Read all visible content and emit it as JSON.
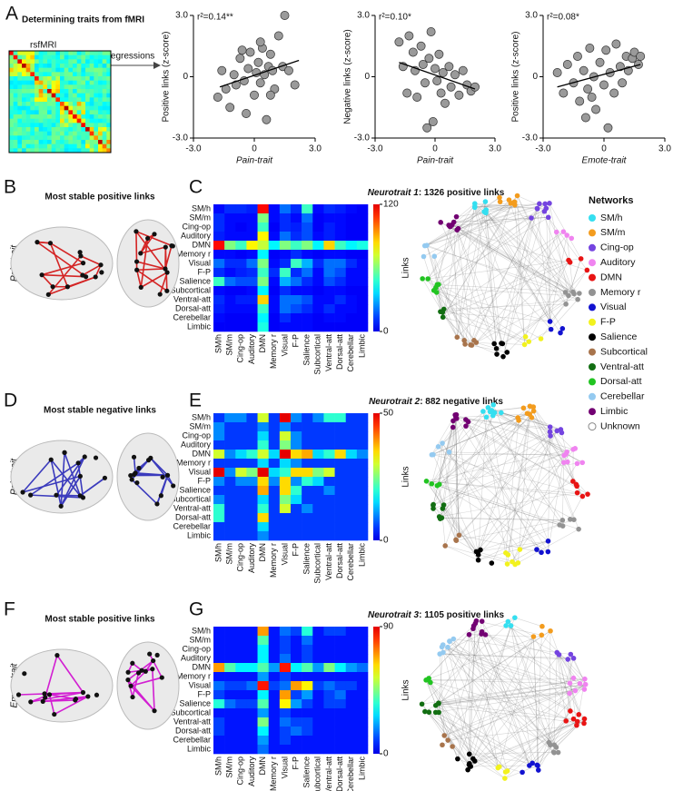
{
  "figure": {
    "letters": [
      "A",
      "B",
      "C",
      "D",
      "E",
      "F",
      "G"
    ],
    "panel_a": {
      "title": "Determining traits from fMRI",
      "matrix_label": "rsfMRI",
      "arrow_label": "robust regressions"
    },
    "brains": [
      {
        "title": "Most stable positive links",
        "trait": "Pain-trait",
        "link_color": "#d42424"
      },
      {
        "title": "Most stable negative links",
        "trait": "Pain-trait",
        "link_color": "#3b3bbd"
      },
      {
        "title": "Most stable positive links",
        "trait": "Emote-trait",
        "link_color": "#d21fd2"
      }
    ],
    "legend": {
      "title": "Networks",
      "entries": [
        {
          "name": "SM/h",
          "color": "#35dff0"
        },
        {
          "name": "SM/m",
          "color": "#f39c1e"
        },
        {
          "name": "Cing-op",
          "color": "#7444e0"
        },
        {
          "name": "Auditory",
          "color": "#f084f0"
        },
        {
          "name": "DMN",
          "color": "#e81414"
        },
        {
          "name": "Memory r",
          "color": "#939393"
        },
        {
          "name": "Visual",
          "color": "#1212d0"
        },
        {
          "name": "F-P",
          "color": "#f2f21e"
        },
        {
          "name": "Salience",
          "color": "#000000"
        },
        {
          "name": "Subcortical",
          "color": "#a8744c"
        },
        {
          "name": "Ventral-att",
          "color": "#126e12"
        },
        {
          "name": "Dorsal-att",
          "color": "#22c422"
        },
        {
          "name": "Cerebellar",
          "color": "#94caf0"
        },
        {
          "name": "Limbic",
          "color": "#720072"
        },
        {
          "name": "Unknown",
          "color": "#ffffff"
        }
      ]
    }
  },
  "chart_data": [
    {
      "type": "scatter",
      "color": "#9a9a9a",
      "annotation": "r²=0.14**",
      "xlabel": "Pain-trait",
      "ylabel": "Positive links (z-score)",
      "x": [
        -1.8,
        -1.6,
        -1.4,
        -1.2,
        -1.0,
        -0.9,
        -0.7,
        -0.5,
        -0.4,
        -0.3,
        -0.2,
        0,
        0.1,
        0.2,
        0.3,
        0.4,
        0.5,
        0.6,
        0.7,
        0.8,
        0.9,
        1.0,
        1.2,
        1.4,
        1.5,
        1.7,
        2.0,
        -0.6,
        0.3,
        0.8
      ],
      "values": [
        -1.0,
        0.3,
        -0.6,
        -1.5,
        0.1,
        -0.4,
        0.9,
        -0.2,
        -1.8,
        0.4,
        1.2,
        -0.9,
        0.2,
        0.7,
        -0.3,
        1.4,
        0.1,
        -2.1,
        0.5,
        1.1,
        0.3,
        -0.6,
        2.0,
        0.5,
        3.0,
        0.3,
        -0.4,
        1.3,
        1.7,
        -0.9
      ],
      "fit": {
        "x": [
          -1.7,
          2.2
        ],
        "values": [
          -0.5,
          0.8
        ]
      },
      "xlim": [
        -3,
        3
      ],
      "ylim": [
        -3,
        3
      ],
      "xticks": [
        {
          "value": -3,
          "label": "-3.0"
        },
        0,
        {
          "value": 3,
          "label": "3.0"
        }
      ],
      "yticks": [
        {
          "value": -3,
          "label": "-3.0"
        },
        0,
        {
          "value": 3,
          "label": "3.0"
        }
      ]
    },
    {
      "type": "scatter",
      "color": "#9a9a9a",
      "annotation": "r²=0.10*",
      "xlabel": "Pain-trait",
      "ylabel": "Negative links (z-score)",
      "x": [
        -1.8,
        -1.6,
        -1.4,
        -1.3,
        -1.1,
        -1.0,
        -0.9,
        -0.7,
        -0.6,
        -0.5,
        -0.3,
        -0.2,
        0,
        0.1,
        0.2,
        0.3,
        0.4,
        0.5,
        0.7,
        0.8,
        1.0,
        1.2,
        1.4,
        1.6,
        1.8,
        2.0,
        -0.1,
        -0.4
      ],
      "values": [
        1.7,
        0.5,
        -0.8,
        2.0,
        1.2,
        0.3,
        -1.0,
        1.5,
        0.6,
        -0.3,
        0.9,
        2.2,
        0.4,
        -0.2,
        1.1,
        -0.8,
        0.2,
        -1.3,
        0.5,
        -0.5,
        0.1,
        -0.9,
        0.3,
        -0.4,
        -0.7,
        -0.5,
        -2.2,
        -2.5
      ],
      "fit": {
        "x": [
          -1.8,
          2.0
        ],
        "values": [
          0.7,
          -0.6
        ]
      },
      "xlim": [
        -3,
        3
      ],
      "ylim": [
        -3,
        3
      ],
      "xticks": [
        {
          "value": -3,
          "label": "-3.0"
        },
        0,
        {
          "value": 3,
          "label": "3.0"
        }
      ],
      "yticks": [
        {
          "value": -3,
          "label": "-3.0"
        },
        0,
        {
          "value": 3,
          "label": "3.0"
        }
      ]
    },
    {
      "type": "scatter",
      "color": "#9a9a9a",
      "annotation": "r²=0.08*",
      "xlabel": "Emote-trait",
      "ylabel": "Positive links (z-score)",
      "x": [
        -2.3,
        -2.0,
        -1.8,
        -1.5,
        -1.3,
        -1.2,
        -1.0,
        -0.8,
        -0.7,
        -0.5,
        -0.4,
        -0.2,
        0,
        0.1,
        0.3,
        0.5,
        0.6,
        0.8,
        0.9,
        1.1,
        1.2,
        1.4,
        1.5,
        1.7,
        1.8,
        -0.9,
        0.2,
        -0.6
      ],
      "values": [
        0.2,
        -0.8,
        0.6,
        -0.3,
        1.0,
        -1.2,
        0.3,
        -0.6,
        1.4,
        0,
        -1.6,
        0.7,
        -0.4,
        1.3,
        0.2,
        -0.8,
        1.6,
        0.5,
        -0.3,
        1.0,
        0.3,
        0.9,
        1.2,
        0.6,
        1.0,
        -2.0,
        -2.5,
        -1.0
      ],
      "fit": {
        "x": [
          -2.3,
          1.8
        ],
        "values": [
          -0.5,
          0.6
        ]
      },
      "xlim": [
        -3,
        3
      ],
      "ylim": [
        -3,
        3
      ],
      "xticks": [
        {
          "value": -3,
          "label": "-3.0"
        },
        0,
        {
          "value": 3,
          "label": "3.0"
        }
      ],
      "yticks": [
        {
          "value": -3,
          "label": "-3.0"
        },
        0,
        {
          "value": 3,
          "label": "3.0"
        }
      ]
    },
    {
      "type": "heatmap",
      "title_italic": "Neurotrait 1",
      "title_rest": ": 1326 positive links",
      "colorbar_label": "Links",
      "colormap": "jet",
      "categories": [
        "SM/h",
        "SM/m",
        "Cing-op",
        "Auditory",
        "DMN",
        "Memory r",
        "Visual",
        "F-P",
        "Salience",
        "Subcortical",
        "Ventral-att",
        "Dorsal-att",
        "Cerebellar",
        "Limbic"
      ],
      "zlim": [
        0,
        120
      ],
      "zticks": [
        0,
        120
      ],
      "values": [
        [
          5,
          10,
          10,
          8,
          115,
          5,
          20,
          10,
          50,
          5,
          10,
          8,
          5,
          3
        ],
        [
          10,
          5,
          5,
          5,
          60,
          5,
          10,
          5,
          20,
          3,
          5,
          5,
          3,
          3
        ],
        [
          10,
          5,
          3,
          5,
          50,
          3,
          10,
          8,
          15,
          3,
          8,
          5,
          3,
          3
        ],
        [
          8,
          5,
          5,
          5,
          80,
          5,
          20,
          10,
          15,
          5,
          8,
          5,
          3,
          3
        ],
        [
          115,
          60,
          50,
          80,
          70,
          40,
          60,
          50,
          60,
          40,
          85,
          50,
          40,
          45
        ],
        [
          5,
          5,
          3,
          5,
          40,
          3,
          5,
          10,
          5,
          3,
          5,
          5,
          3,
          3
        ],
        [
          20,
          10,
          10,
          20,
          60,
          5,
          10,
          50,
          30,
          10,
          20,
          20,
          10,
          5
        ],
        [
          10,
          5,
          8,
          10,
          50,
          10,
          50,
          10,
          20,
          5,
          20,
          15,
          5,
          5
        ],
        [
          50,
          20,
          15,
          15,
          60,
          5,
          30,
          20,
          10,
          5,
          15,
          10,
          5,
          5
        ],
        [
          5,
          3,
          3,
          5,
          40,
          3,
          10,
          5,
          5,
          3,
          5,
          5,
          3,
          3
        ],
        [
          10,
          5,
          8,
          8,
          85,
          5,
          20,
          20,
          15,
          5,
          5,
          10,
          5,
          3
        ],
        [
          8,
          5,
          5,
          5,
          50,
          5,
          20,
          15,
          10,
          5,
          10,
          5,
          5,
          3
        ],
        [
          5,
          3,
          3,
          3,
          40,
          3,
          10,
          5,
          5,
          3,
          5,
          5,
          3,
          3
        ],
        [
          3,
          3,
          3,
          3,
          45,
          3,
          5,
          5,
          5,
          3,
          3,
          3,
          3,
          3
        ]
      ]
    },
    {
      "type": "heatmap",
      "title_italic": "Neurotrait 2",
      "title_rest": ": 882 negative links",
      "colorbar_label": "Links",
      "colormap": "jet",
      "categories": [
        "SM/h",
        "SM/m",
        "Cing-op",
        "Auditory",
        "DMN",
        "Memory r",
        "Visual",
        "F-P",
        "Salience",
        "Subcortical",
        "Ventral-att",
        "Dorsal-att",
        "Cerebellar",
        "Limbic"
      ],
      "zlim": [
        0,
        50
      ],
      "zticks": [
        0,
        50
      ],
      "values": [
        [
          5,
          10,
          10,
          5,
          30,
          5,
          50,
          10,
          5,
          10,
          20,
          20,
          5,
          5
        ],
        [
          10,
          5,
          5,
          5,
          10,
          5,
          10,
          5,
          5,
          5,
          5,
          5,
          5,
          5
        ],
        [
          10,
          5,
          5,
          5,
          15,
          5,
          30,
          10,
          5,
          5,
          5,
          5,
          5,
          5
        ],
        [
          5,
          5,
          5,
          5,
          20,
          5,
          25,
          10,
          5,
          5,
          5,
          5,
          5,
          5
        ],
        [
          30,
          10,
          15,
          20,
          30,
          15,
          50,
          35,
          38,
          15,
          20,
          35,
          15,
          10
        ],
        [
          5,
          5,
          5,
          5,
          15,
          5,
          15,
          10,
          5,
          5,
          5,
          5,
          5,
          5
        ],
        [
          50,
          10,
          30,
          25,
          50,
          15,
          20,
          35,
          35,
          25,
          30,
          5,
          5,
          5
        ],
        [
          10,
          5,
          10,
          10,
          35,
          10,
          35,
          10,
          20,
          15,
          5,
          5,
          5,
          5
        ],
        [
          5,
          5,
          5,
          5,
          38,
          5,
          35,
          20,
          5,
          5,
          10,
          5,
          5,
          5
        ],
        [
          10,
          5,
          5,
          5,
          15,
          5,
          25,
          15,
          5,
          5,
          5,
          5,
          5,
          5
        ],
        [
          20,
          5,
          5,
          5,
          20,
          5,
          30,
          5,
          10,
          5,
          5,
          5,
          5,
          5
        ],
        [
          20,
          5,
          5,
          5,
          35,
          5,
          5,
          5,
          5,
          5,
          5,
          5,
          5,
          5
        ],
        [
          5,
          5,
          5,
          5,
          15,
          5,
          5,
          5,
          5,
          5,
          5,
          5,
          5,
          5
        ],
        [
          5,
          5,
          5,
          5,
          10,
          5,
          5,
          5,
          5,
          5,
          5,
          5,
          5,
          5
        ]
      ]
    },
    {
      "type": "heatmap",
      "title_italic": "Neurotrait 3",
      "title_rest": ": 1105 positive links",
      "colorbar_label": "Links",
      "colormap": "jet",
      "categories": [
        "SM/h",
        "SM/m",
        "Cing-op",
        "Auditory",
        "DMN",
        "Memory r",
        "Visual",
        "F-P",
        "Salience",
        "Subcortical",
        "Ventral-att",
        "Dorsal-att",
        "Cerebellar",
        "Limbic"
      ],
      "zlim": [
        0,
        90
      ],
      "zticks": [
        0,
        90
      ],
      "values": [
        [
          5,
          5,
          5,
          5,
          70,
          5,
          15,
          10,
          35,
          5,
          10,
          10,
          5,
          5
        ],
        [
          5,
          5,
          5,
          5,
          40,
          5,
          10,
          5,
          15,
          5,
          5,
          5,
          5,
          5
        ],
        [
          5,
          5,
          5,
          5,
          30,
          5,
          10,
          5,
          10,
          5,
          5,
          5,
          5,
          5
        ],
        [
          5,
          5,
          5,
          5,
          30,
          5,
          15,
          5,
          10,
          5,
          5,
          5,
          5,
          5
        ],
        [
          70,
          40,
          30,
          30,
          40,
          20,
          85,
          30,
          40,
          20,
          45,
          30,
          20,
          15
        ],
        [
          5,
          5,
          5,
          5,
          20,
          5,
          10,
          5,
          5,
          5,
          5,
          5,
          5,
          5
        ],
        [
          15,
          10,
          10,
          15,
          85,
          10,
          15,
          70,
          60,
          10,
          15,
          10,
          10,
          5
        ],
        [
          10,
          5,
          5,
          5,
          30,
          5,
          70,
          10,
          20,
          5,
          10,
          15,
          5,
          5
        ],
        [
          35,
          15,
          10,
          10,
          40,
          5,
          60,
          20,
          10,
          5,
          10,
          10,
          5,
          5
        ],
        [
          5,
          5,
          5,
          5,
          20,
          5,
          10,
          5,
          5,
          5,
          5,
          5,
          5,
          5
        ],
        [
          10,
          5,
          5,
          5,
          45,
          5,
          15,
          10,
          10,
          5,
          5,
          5,
          5,
          5
        ],
        [
          10,
          5,
          5,
          5,
          30,
          5,
          10,
          15,
          10,
          5,
          5,
          5,
          5,
          5
        ],
        [
          5,
          5,
          5,
          5,
          20,
          5,
          10,
          5,
          5,
          5,
          5,
          5,
          5,
          5
        ],
        [
          5,
          5,
          5,
          5,
          15,
          5,
          5,
          5,
          5,
          5,
          5,
          5,
          5,
          5
        ]
      ]
    }
  ]
}
